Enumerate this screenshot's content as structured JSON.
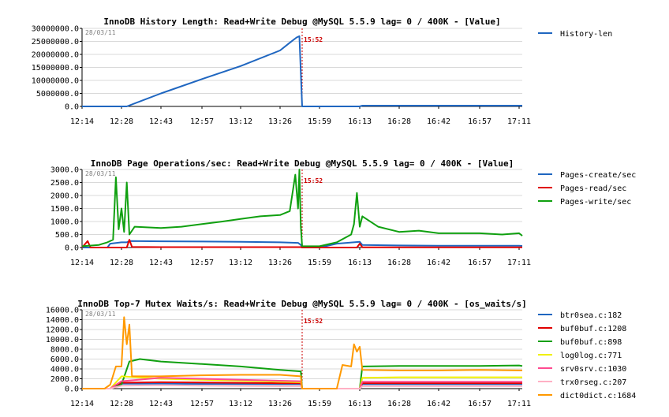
{
  "chart_data": [
    {
      "type": "line",
      "title": "InnoDB History Length: Read+Write Debug @MySQL 5.5.9 lag= 0 / 400K - [Value]",
      "date_stamp": "28/03/11",
      "marker_label": "15:52",
      "x_ticks": [
        "12:14",
        "12:28",
        "12:43",
        "12:57",
        "13:12",
        "13:26",
        "15:59",
        "16:13",
        "16:28",
        "16:42",
        "16:57",
        "17:11"
      ],
      "y_ticks": [
        "0.0",
        "5000000.0",
        "10000000.0",
        "15000000.0",
        "20000000.0",
        "25000000.0",
        "30000000.0"
      ],
      "ylim": [
        0,
        30000000
      ],
      "grid": true,
      "legend_position": "right",
      "series": [
        {
          "name": "History-len",
          "color": "#1f66c0",
          "points": [
            [
              "12:14",
              0
            ],
            [
              "12:28",
              0
            ],
            [
              "12:30",
              0
            ],
            [
              "12:43",
              5000000
            ],
            [
              "12:57",
              10500000
            ],
            [
              "13:12",
              15500000
            ],
            [
              "13:26",
              21500000
            ],
            [
              "13:33",
              24500000
            ],
            [
              "13:38",
              26500000
            ],
            [
              "13:40",
              27000000
            ],
            [
              "13:41",
              13000000
            ],
            [
              "13:42",
              0
            ],
            [
              "15:59",
              0
            ],
            [
              "16:13",
              0
            ],
            [
              "16:14",
              300000
            ],
            [
              "16:28",
              300000
            ],
            [
              "16:42",
              300000
            ],
            [
              "16:57",
              300000
            ],
            [
              "17:11",
              300000
            ],
            [
              "17:14",
              300000
            ]
          ]
        }
      ]
    },
    {
      "type": "line",
      "title": "InnoDB Page Operations/sec: Read+Write Debug @MySQL 5.5.9 lag= 0 / 400K - [Value]",
      "date_stamp": "28/03/11",
      "marker_label": "15:52",
      "x_ticks": [
        "12:14",
        "12:28",
        "12:43",
        "12:57",
        "13:12",
        "13:26",
        "15:59",
        "16:13",
        "16:28",
        "16:42",
        "16:57",
        "17:11"
      ],
      "y_ticks": [
        "0.0",
        "500.0",
        "1000.0",
        "1500.0",
        "2000.0",
        "2500.0",
        "3000.0"
      ],
      "ylim": [
        0,
        3000
      ],
      "grid": true,
      "legend_position": "right",
      "series": [
        {
          "name": "Pages-create/sec",
          "color": "#1f66c0",
          "points": [
            [
              "12:14",
              0
            ],
            [
              "12:23",
              0
            ],
            [
              "12:24",
              150
            ],
            [
              "12:28",
              200
            ],
            [
              "12:30",
              200
            ],
            [
              "12:31",
              250
            ],
            [
              "12:43",
              240
            ],
            [
              "12:57",
              230
            ],
            [
              "13:12",
              220
            ],
            [
              "13:26",
              200
            ],
            [
              "13:39",
              180
            ],
            [
              "13:41",
              100
            ],
            [
              "13:42",
              0
            ],
            [
              "15:59",
              0
            ],
            [
              "16:05",
              150
            ],
            [
              "16:13",
              220
            ],
            [
              "16:14",
              100
            ],
            [
              "16:28",
              80
            ],
            [
              "16:42",
              70
            ],
            [
              "16:57",
              70
            ],
            [
              "17:11",
              70
            ],
            [
              "17:14",
              60
            ]
          ]
        },
        {
          "name": "Pages-read/sec",
          "color": "#e00000",
          "points": [
            [
              "12:14",
              0
            ],
            [
              "12:16",
              250
            ],
            [
              "12:17",
              0
            ],
            [
              "12:28",
              0
            ],
            [
              "12:30",
              0
            ],
            [
              "12:31",
              300
            ],
            [
              "12:32",
              20
            ],
            [
              "12:43",
              15
            ],
            [
              "12:57",
              15
            ],
            [
              "13:12",
              15
            ],
            [
              "13:26",
              15
            ],
            [
              "13:41",
              15
            ],
            [
              "13:42",
              0
            ],
            [
              "15:59",
              0
            ],
            [
              "16:12",
              0
            ],
            [
              "16:13",
              150
            ],
            [
              "16:14",
              10
            ],
            [
              "16:28",
              10
            ],
            [
              "16:42",
              10
            ],
            [
              "16:57",
              10
            ],
            [
              "17:11",
              10
            ],
            [
              "17:14",
              10
            ]
          ]
        },
        {
          "name": "Pages-write/sec",
          "color": "#10a010",
          "points": [
            [
              "12:14",
              50
            ],
            [
              "12:20",
              100
            ],
            [
              "12:23",
              200
            ],
            [
              "12:25",
              300
            ],
            [
              "12:26",
              2700
            ],
            [
              "12:27",
              700
            ],
            [
              "12:28",
              1500
            ],
            [
              "12:29",
              600
            ],
            [
              "12:30",
              2500
            ],
            [
              "12:31",
              500
            ],
            [
              "12:33",
              800
            ],
            [
              "12:43",
              750
            ],
            [
              "12:50",
              800
            ],
            [
              "12:57",
              900
            ],
            [
              "13:05",
              1000
            ],
            [
              "13:12",
              1100
            ],
            [
              "13:19",
              1200
            ],
            [
              "13:26",
              1250
            ],
            [
              "13:33",
              1400
            ],
            [
              "13:37",
              2800
            ],
            [
              "13:39",
              1500
            ],
            [
              "13:40",
              3000
            ],
            [
              "13:41",
              800
            ],
            [
              "13:42",
              50
            ],
            [
              "15:59",
              50
            ],
            [
              "16:05",
              200
            ],
            [
              "16:10",
              500
            ],
            [
              "16:11",
              900
            ],
            [
              "16:12",
              2100
            ],
            [
              "16:13",
              800
            ],
            [
              "16:14",
              1200
            ],
            [
              "16:20",
              800
            ],
            [
              "16:28",
              600
            ],
            [
              "16:35",
              650
            ],
            [
              "16:42",
              550
            ],
            [
              "16:50",
              550
            ],
            [
              "16:57",
              550
            ],
            [
              "17:05",
              500
            ],
            [
              "17:11",
              550
            ],
            [
              "17:14",
              450
            ]
          ]
        }
      ]
    },
    {
      "type": "line",
      "title": "InnoDB Top-7 Mutex Waits/s: Read+Write Debug @MySQL 5.5.9 lag= 0 / 400K - [os_waits/s]",
      "date_stamp": "28/03/11",
      "marker_label": "15:52",
      "x_ticks": [
        "12:14",
        "12:28",
        "12:43",
        "12:57",
        "13:12",
        "13:26",
        "15:59",
        "16:13",
        "16:28",
        "16:42",
        "16:57",
        "17:11"
      ],
      "y_ticks": [
        "0.0",
        "2000.0",
        "4000.0",
        "6000.0",
        "8000.0",
        "10000.0",
        "12000.0",
        "14000.0",
        "16000.0"
      ],
      "ylim": [
        0,
        16000
      ],
      "grid": true,
      "legend_position": "right",
      "series": [
        {
          "name": "btr0sea.c:182",
          "color": "#1f66c0",
          "points": [
            [
              "12:14",
              0
            ],
            [
              "12:24",
              0
            ],
            [
              "12:28",
              1000
            ],
            [
              "12:43",
              1000
            ],
            [
              "13:26",
              900
            ],
            [
              "13:41",
              900
            ],
            [
              "13:42",
              0
            ],
            [
              "15:59",
              0
            ],
            [
              "16:13",
              0
            ],
            [
              "16:14",
              900
            ],
            [
              "17:14",
              900
            ]
          ]
        },
        {
          "name": "buf0buf.c:1208",
          "color": "#e00000",
          "points": [
            [
              "12:14",
              0
            ],
            [
              "12:24",
              0
            ],
            [
              "12:28",
              1200
            ],
            [
              "12:43",
              1300
            ],
            [
              "13:26",
              1100
            ],
            [
              "13:41",
              1100
            ],
            [
              "13:42",
              0
            ],
            [
              "15:59",
              0
            ],
            [
              "16:13",
              0
            ],
            [
              "16:14",
              1100
            ],
            [
              "17:14",
              1100
            ]
          ]
        },
        {
          "name": "buf0buf.c:898",
          "color": "#10a010",
          "points": [
            [
              "12:14",
              0
            ],
            [
              "12:24",
              0
            ],
            [
              "12:28",
              800
            ],
            [
              "12:31",
              5500
            ],
            [
              "12:35",
              6000
            ],
            [
              "12:43",
              5500
            ],
            [
              "12:57",
              5000
            ],
            [
              "13:12",
              4500
            ],
            [
              "13:26",
              3800
            ],
            [
              "13:41",
              3500
            ],
            [
              "13:42",
              0
            ],
            [
              "15:59",
              0
            ],
            [
              "16:13",
              0
            ],
            [
              "16:14",
              4500
            ],
            [
              "16:28",
              4600
            ],
            [
              "16:42",
              4600
            ],
            [
              "16:57",
              4600
            ],
            [
              "17:11",
              4700
            ],
            [
              "17:14",
              4600
            ]
          ]
        },
        {
          "name": "log0log.c:771",
          "color": "#f0f000",
          "points": [
            [
              "12:14",
              0
            ],
            [
              "12:24",
              0
            ],
            [
              "12:28",
              2500
            ],
            [
              "12:43",
              2000
            ],
            [
              "12:57",
              1800
            ],
            [
              "13:12",
              1600
            ],
            [
              "13:26",
              1400
            ],
            [
              "13:41",
              1300
            ],
            [
              "13:42",
              0
            ],
            [
              "15:59",
              0
            ],
            [
              "16:13",
              0
            ],
            [
              "16:14",
              2200
            ],
            [
              "16:28",
              2300
            ],
            [
              "16:42",
              2300
            ],
            [
              "16:57",
              2300
            ],
            [
              "17:14",
              2300
            ]
          ]
        },
        {
          "name": "srv0srv.c:1030",
          "color": "#ff4a90",
          "points": [
            [
              "12:14",
              0
            ],
            [
              "12:24",
              0
            ],
            [
              "12:28",
              1500
            ],
            [
              "12:43",
              2200
            ],
            [
              "12:57",
              2000
            ],
            [
              "13:12",
              1800
            ],
            [
              "13:26",
              1600
            ],
            [
              "13:41",
              1500
            ],
            [
              "13:42",
              0
            ],
            [
              "15:59",
              0
            ],
            [
              "16:13",
              0
            ],
            [
              "16:14",
              1400
            ],
            [
              "16:28",
              1400
            ],
            [
              "16:42",
              1400
            ],
            [
              "17:14",
              1400
            ]
          ]
        },
        {
          "name": "trx0rseg.c:207",
          "color": "#ffb0c4",
          "points": [
            [
              "12:14",
              0
            ],
            [
              "12:24",
              0
            ],
            [
              "12:28",
              600
            ],
            [
              "12:43",
              700
            ],
            [
              "12:57",
              600
            ],
            [
              "13:26",
              500
            ],
            [
              "13:41",
              500
            ],
            [
              "13:42",
              0
            ],
            [
              "15:59",
              0
            ],
            [
              "16:13",
              0
            ],
            [
              "16:14",
              500
            ],
            [
              "17:14",
              500
            ]
          ]
        },
        {
          "name": "dict0dict.c:1684",
          "color": "#ff9900",
          "points": [
            [
              "12:14",
              0
            ],
            [
              "12:22",
              0
            ],
            [
              "12:24",
              800
            ],
            [
              "12:26",
              4500
            ],
            [
              "12:28",
              4500
            ],
            [
              "12:29",
              14500
            ],
            [
              "12:30",
              9000
            ],
            [
              "12:31",
              13000
            ],
            [
              "12:32",
              2500
            ],
            [
              "12:43",
              2500
            ],
            [
              "12:57",
              2700
            ],
            [
              "13:12",
              2800
            ],
            [
              "13:26",
              2800
            ],
            [
              "13:41",
              2500
            ],
            [
              "13:42",
              0
            ],
            [
              "15:59",
              0
            ],
            [
              "16:05",
              0
            ],
            [
              "16:07",
              4800
            ],
            [
              "16:10",
              4500
            ],
            [
              "16:11",
              9000
            ],
            [
              "16:12",
              7500
            ],
            [
              "16:13",
              8500
            ],
            [
              "16:14",
              3800
            ],
            [
              "16:28",
              3700
            ],
            [
              "16:42",
              3700
            ],
            [
              "16:57",
              3800
            ],
            [
              "17:11",
              3700
            ],
            [
              "17:14",
              3700
            ]
          ]
        }
      ]
    }
  ]
}
